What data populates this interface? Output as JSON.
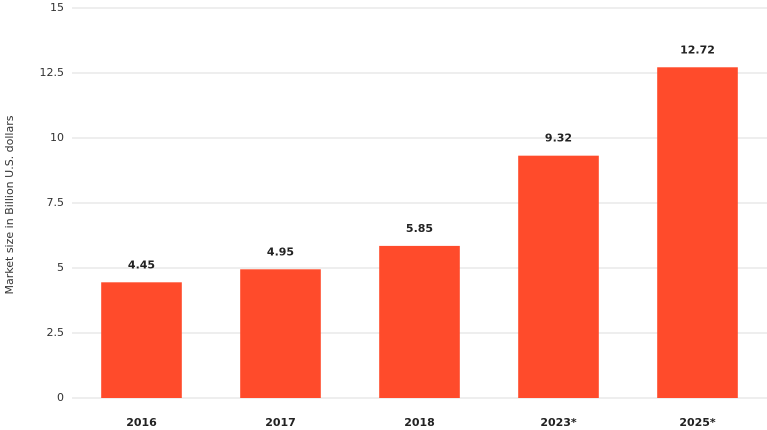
{
  "chart_data": {
    "type": "bar",
    "y_label": "Market size in Billion U.S. dollars",
    "categories": [
      "2016",
      "2017",
      "2018",
      "2023*",
      "2025*"
    ],
    "values": [
      4.45,
      4.95,
      5.85,
      9.32,
      12.72
    ],
    "color": "#ff4b2b",
    "ylim": [
      0,
      15
    ],
    "yticks": [
      0,
      2.5,
      5,
      7.5,
      10,
      12.5,
      15
    ],
    "grid": true
  }
}
